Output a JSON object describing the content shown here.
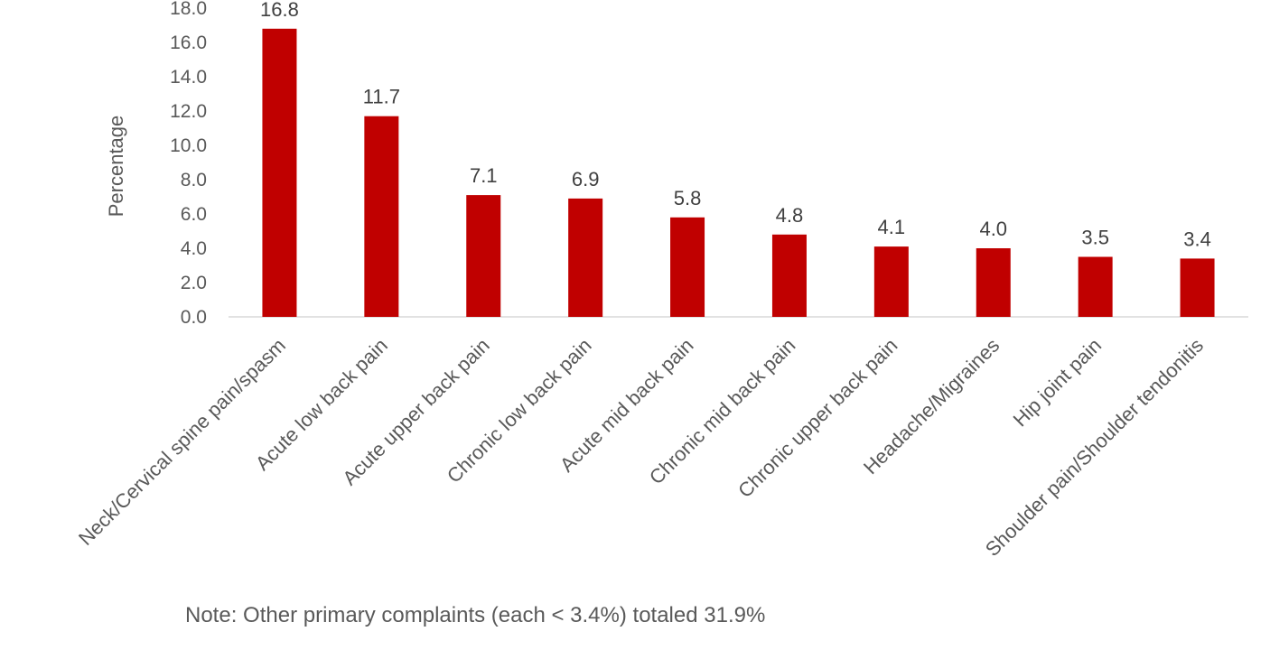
{
  "chart_data": {
    "type": "bar",
    "title": "",
    "xlabel": "",
    "ylabel": "Percentage",
    "ylim": [
      0,
      18
    ],
    "ytick_step": 2,
    "ytick_labels": [
      "0.0",
      "2.0",
      "4.0",
      "6.0",
      "8.0",
      "10.0",
      "12.0",
      "14.0",
      "16.0",
      "18.0"
    ],
    "categories": [
      "Neck/Cervical spine pain/spasm",
      "Acute low back pain",
      "Acute upper back pain",
      "Chronic low back pain",
      "Acute mid back pain",
      "Chronic mid back pain",
      "Chronic upper back pain",
      "Headache/Migraines",
      "Hip joint pain",
      "Shoulder pain/Shoulder tendonitis"
    ],
    "values": [
      16.8,
      11.7,
      7.1,
      6.9,
      5.8,
      4.8,
      4.1,
      4.0,
      3.5,
      3.4
    ],
    "value_labels": [
      "16.8",
      "11.7",
      "7.1",
      "6.9",
      "5.8",
      "4.8",
      "4.1",
      "4.0",
      "3.5",
      "3.4"
    ],
    "bar_color": "#c00000",
    "grid": false,
    "legend": "none"
  },
  "note": "Note: Other primary complaints (each < 3.4%) totaled 31.9%"
}
